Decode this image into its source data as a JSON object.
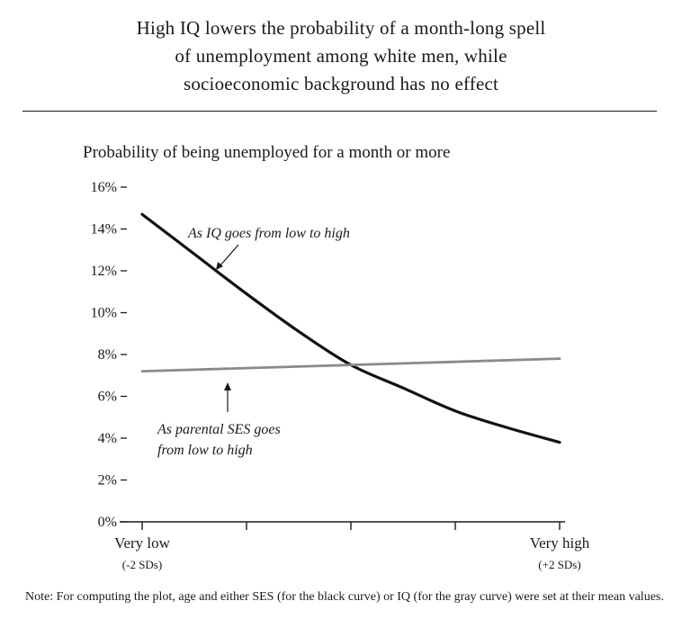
{
  "chart_data": {
    "type": "line",
    "title_lines": [
      "High IQ lowers the probability of a month-long spell",
      "of unemployment among white men, while",
      "socioeconomic background has no effect"
    ],
    "ylabel": "Probability of being unemployed for a month or more",
    "ylim": [
      0,
      16
    ],
    "y_ticks": [
      "0%",
      "2%",
      "4%",
      "6%",
      "8%",
      "10%",
      "12%",
      "14%",
      "16%"
    ],
    "xlim": [
      -2,
      2
    ],
    "x_tick_values": [
      -2,
      -1,
      0,
      1,
      2
    ],
    "x_labels": [
      {
        "x": -2,
        "label": "Very low",
        "sub": "(-2 SDs)"
      },
      {
        "x": 2,
        "label": "Very high",
        "sub": "(+2 SDs)"
      }
    ],
    "grid": false,
    "series": [
      {
        "color": "#111111",
        "x": [
          -2,
          -1.5,
          -1,
          -0.5,
          0,
          0.5,
          1,
          1.5,
          2
        ],
        "values": [
          14.7,
          12.8,
          10.9,
          9.1,
          7.5,
          6.4,
          5.3,
          4.5,
          3.8
        ]
      },
      {
        "color": "#8a8a8a",
        "x": [
          -2,
          2
        ],
        "values": [
          7.2,
          7.8
        ]
      }
    ],
    "annotations": [
      {
        "lines": [
          "As IQ goes from low to high"
        ]
      },
      {
        "lines": [
          "As parental SES goes",
          "from low to high"
        ]
      }
    ],
    "note": "Note: For computing the plot, age and either SES (for the black curve) or IQ (for the gray curve) were set at their mean values."
  }
}
